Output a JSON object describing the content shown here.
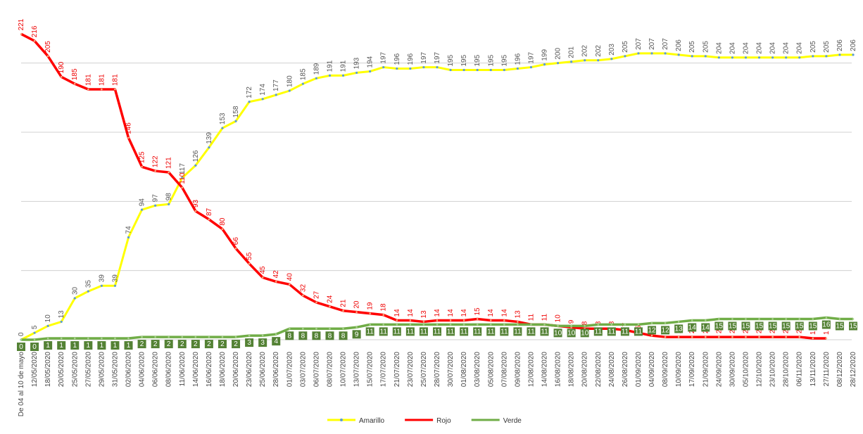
{
  "chart_data": {
    "type": "line",
    "categories": [
      "De 04 al 10 de mayo",
      "12/05/2020",
      "18/05/2020",
      "20/05/2020",
      "25/05/2020",
      "27/05/2020",
      "29/05/2020",
      "31/05/2020",
      "02/06/2020",
      "04/06/2020",
      "06/06/2020",
      "08/06/2020",
      "11/06/2020",
      "14/06/2020",
      "16/06/2020",
      "18/06/2020",
      "20/06/2020",
      "23/06/2020",
      "25/06/2020",
      "28/06/2020",
      "01/07/2020",
      "03/07/2020",
      "06/07/2020",
      "08/07/2020",
      "10/07/2020",
      "13/07/2020",
      "15/07/2020",
      "17/07/2020",
      "21/07/2020",
      "23/07/2020",
      "25/07/2020",
      "28/07/2020",
      "30/07/2020",
      "01/08/2020",
      "03/08/2020",
      "05/08/2020",
      "07/08/2020",
      "09/08/2020",
      "12/08/2020",
      "14/08/2020",
      "16/08/2020",
      "18/08/2020",
      "20/08/2020",
      "22/08/2020",
      "24/08/2020",
      "26/08/2020",
      "01/09/2020",
      "04/09/2020",
      "08/09/2020",
      "10/09/2020",
      "17/09/2020",
      "21/09/2020",
      "24/09/2020",
      "30/09/2020",
      "05/10/2020",
      "12/10/2020",
      "23/10/2020",
      "28/10/2020",
      "06/11/2020",
      "13/11/2020",
      "27/11/2020",
      "08/12/2020",
      "28/12/2020"
    ],
    "series": [
      {
        "name": "Amarillo",
        "color": "#ffff00",
        "values": [
          0,
          5,
          10,
          13,
          30,
          35,
          39,
          39,
          74,
          94,
          97,
          98,
          117,
          126,
          139,
          153,
          158,
          172,
          174,
          177,
          180,
          185,
          189,
          191,
          191,
          193,
          194,
          197,
          196,
          196,
          197,
          197,
          195,
          195,
          195,
          195,
          195,
          196,
          197,
          199,
          200,
          201,
          202,
          202,
          203,
          205,
          207,
          207,
          207,
          206,
          205,
          205,
          204,
          204,
          204,
          204,
          204,
          204,
          204,
          205,
          205,
          206,
          206
        ]
      },
      {
        "name": "Rojo",
        "color": "#ff0000",
        "values": [
          221,
          216,
          205,
          190,
          185,
          181,
          181,
          181,
          146,
          125,
          122,
          121,
          110,
          93,
          87,
          80,
          66,
          55,
          45,
          42,
          40,
          32,
          27,
          24,
          21,
          20,
          19,
          18,
          14,
          14,
          13,
          14,
          14,
          14,
          15,
          14,
          14,
          13,
          11,
          11,
          10,
          9,
          8,
          8,
          8,
          7,
          5,
          3,
          2,
          2,
          2,
          2,
          2,
          2,
          2,
          2,
          2,
          2,
          2,
          1,
          1,
          null,
          null
        ]
      },
      {
        "name": "Verde",
        "color": "#70ad47",
        "values": [
          0,
          0,
          1,
          1,
          1,
          1,
          1,
          1,
          1,
          2,
          2,
          2,
          2,
          2,
          2,
          2,
          2,
          3,
          3,
          4,
          8,
          8,
          8,
          8,
          8,
          9,
          11,
          11,
          11,
          11,
          11,
          11,
          11,
          11,
          11,
          11,
          11,
          11,
          11,
          11,
          10,
          10,
          10,
          11,
          11,
          11,
          11,
          12,
          12,
          13,
          14,
          14,
          15,
          15,
          15,
          15,
          15,
          15,
          15,
          15,
          16,
          15,
          15
        ]
      }
    ],
    "ylim": [
      0,
      240
    ],
    "yticks": [
      0,
      50,
      100,
      150,
      200
    ],
    "grid": true,
    "legend": "bottom"
  }
}
